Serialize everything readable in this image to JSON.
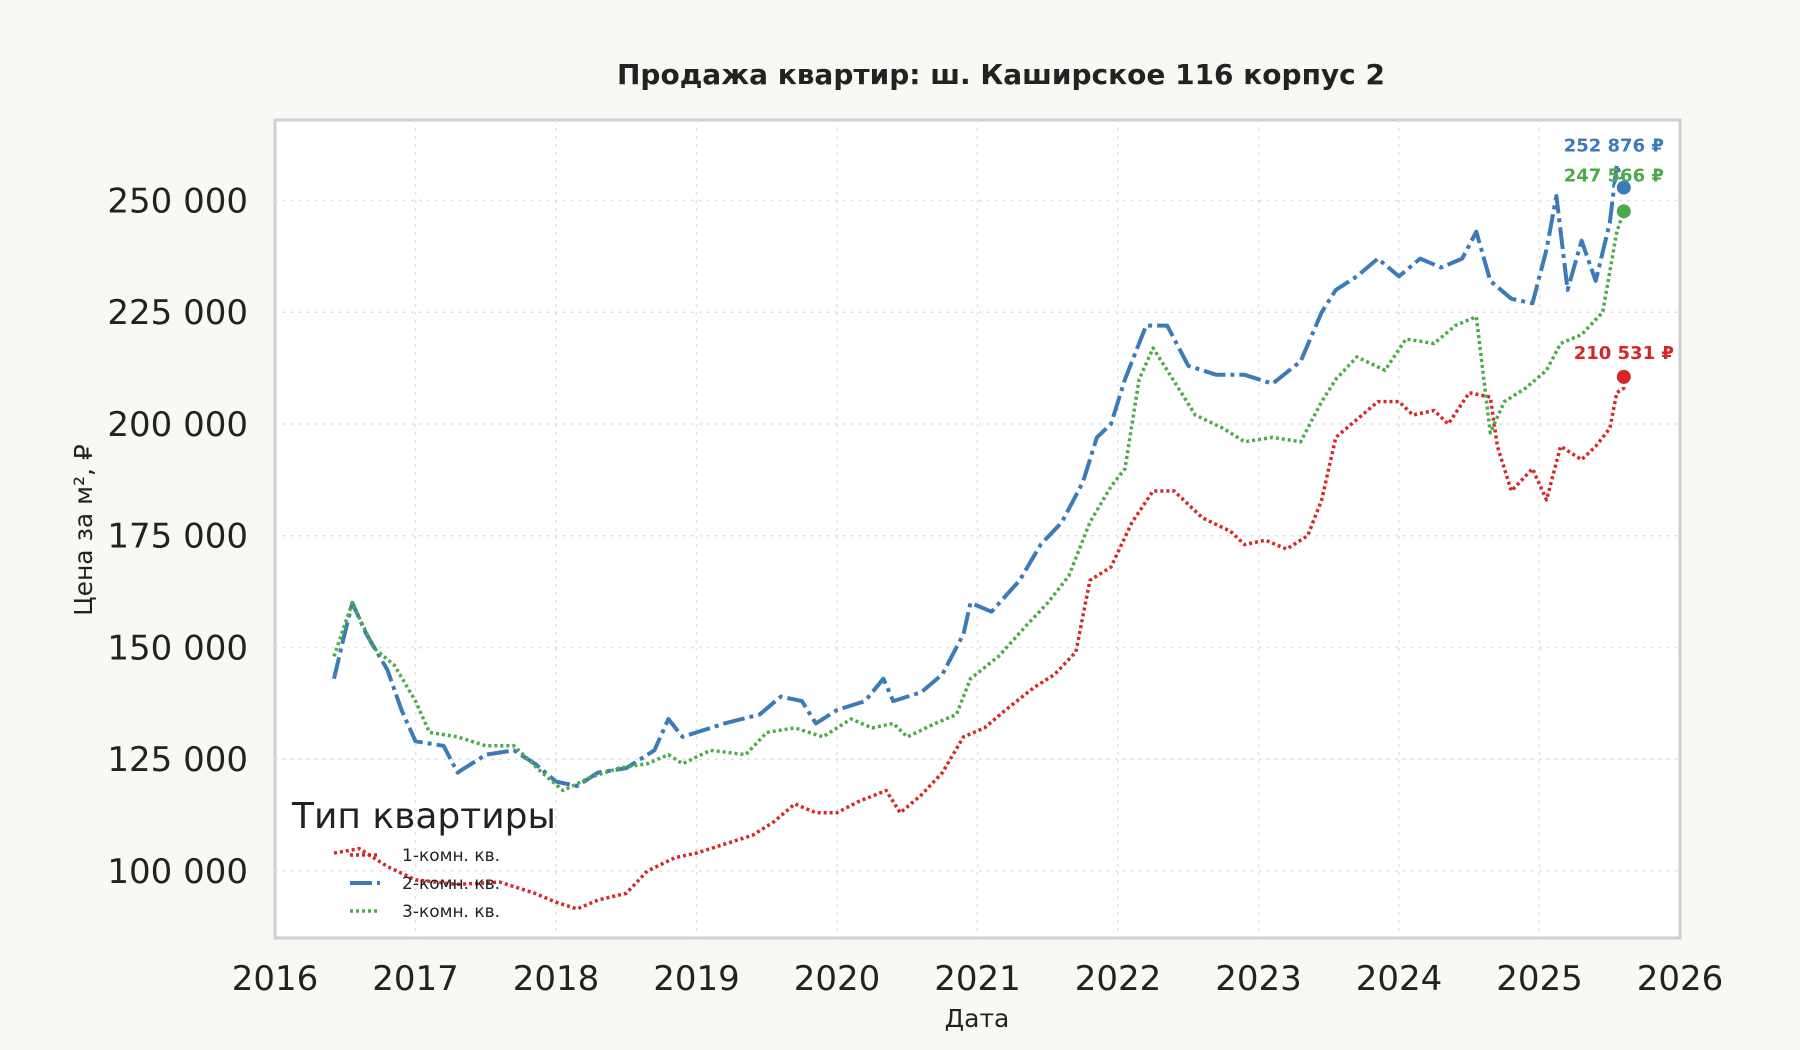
{
  "chart_data": {
    "type": "line",
    "title": "Продажа квартир: ш. Каширское 116 корпус 2",
    "xlabel": "Дата",
    "ylabel": "Цена за м², ₽",
    "xlim": [
      2016,
      2026
    ],
    "ylim": [
      85000,
      268000
    ],
    "x_ticks": [
      "2016",
      "2017",
      "2018",
      "2019",
      "2020",
      "2021",
      "2022",
      "2023",
      "2024",
      "2025",
      "2026"
    ],
    "y_ticks": [
      100000,
      125000,
      150000,
      175000,
      200000,
      225000,
      250000
    ],
    "y_tick_labels": [
      "100 000",
      "125 000",
      "150 000",
      "175 000",
      "200 000",
      "225 000",
      "250 000"
    ],
    "grid": true,
    "legend": {
      "title": "Тип квартиры",
      "placement": "lower-left"
    },
    "series": [
      {
        "name": "1-комн. кв.",
        "color": "#d62728",
        "style": "dotted",
        "points": [
          [
            2016.42,
            104000
          ],
          [
            2016.6,
            105000
          ],
          [
            2016.8,
            101000
          ],
          [
            2017.0,
            98000
          ],
          [
            2017.3,
            97000
          ],
          [
            2017.6,
            97500
          ],
          [
            2017.85,
            95000
          ],
          [
            2018.0,
            93000
          ],
          [
            2018.15,
            91500
          ],
          [
            2018.3,
            93500
          ],
          [
            2018.5,
            95000
          ],
          [
            2018.65,
            100000
          ],
          [
            2018.85,
            103000
          ],
          [
            2019.0,
            104000
          ],
          [
            2019.2,
            106000
          ],
          [
            2019.4,
            108000
          ],
          [
            2019.55,
            111000
          ],
          [
            2019.7,
            115000
          ],
          [
            2019.85,
            113000
          ],
          [
            2020.0,
            113000
          ],
          [
            2020.15,
            115500
          ],
          [
            2020.35,
            118000
          ],
          [
            2020.45,
            113000
          ],
          [
            2020.6,
            117000
          ],
          [
            2020.75,
            122000
          ],
          [
            2020.9,
            130000
          ],
          [
            2021.05,
            132000
          ],
          [
            2021.2,
            136000
          ],
          [
            2021.4,
            141000
          ],
          [
            2021.55,
            144000
          ],
          [
            2021.7,
            149000
          ],
          [
            2021.8,
            165000
          ],
          [
            2021.95,
            168000
          ],
          [
            2022.1,
            178000
          ],
          [
            2022.25,
            185000
          ],
          [
            2022.4,
            185000
          ],
          [
            2022.6,
            179000
          ],
          [
            2022.8,
            176000
          ],
          [
            2022.9,
            173000
          ],
          [
            2023.05,
            174000
          ],
          [
            2023.2,
            172000
          ],
          [
            2023.35,
            175000
          ],
          [
            2023.45,
            183000
          ],
          [
            2023.55,
            197000
          ],
          [
            2023.7,
            201000
          ],
          [
            2023.85,
            205000
          ],
          [
            2024.0,
            205000
          ],
          [
            2024.1,
            202000
          ],
          [
            2024.25,
            203000
          ],
          [
            2024.35,
            200000
          ],
          [
            2024.5,
            207000
          ],
          [
            2024.65,
            206000
          ],
          [
            2024.7,
            195000
          ],
          [
            2024.8,
            185000
          ],
          [
            2024.95,
            190000
          ],
          [
            2025.05,
            183000
          ],
          [
            2025.15,
            195000
          ],
          [
            2025.3,
            192000
          ],
          [
            2025.4,
            195000
          ],
          [
            2025.5,
            199000
          ],
          [
            2025.55,
            207000
          ],
          [
            2025.6,
            208000
          ],
          [
            2025.6,
            210531
          ]
        ],
        "end_label": "210 531 ₽"
      },
      {
        "name": "2-комн. кв.",
        "color": "#3d7ab8",
        "style": "dashdot",
        "points": [
          [
            2016.42,
            143000
          ],
          [
            2016.48,
            151000
          ],
          [
            2016.55,
            160000
          ],
          [
            2016.65,
            153000
          ],
          [
            2016.8,
            145000
          ],
          [
            2016.9,
            136000
          ],
          [
            2017.0,
            129000
          ],
          [
            2017.2,
            128000
          ],
          [
            2017.3,
            122000
          ],
          [
            2017.5,
            126000
          ],
          [
            2017.7,
            127000
          ],
          [
            2017.85,
            124000
          ],
          [
            2018.0,
            120000
          ],
          [
            2018.15,
            119000
          ],
          [
            2018.3,
            122000
          ],
          [
            2018.5,
            123000
          ],
          [
            2018.7,
            127000
          ],
          [
            2018.8,
            134000
          ],
          [
            2018.9,
            130000
          ],
          [
            2019.0,
            131000
          ],
          [
            2019.2,
            133000
          ],
          [
            2019.45,
            135000
          ],
          [
            2019.6,
            139000
          ],
          [
            2019.75,
            138000
          ],
          [
            2019.85,
            133000
          ],
          [
            2020.0,
            136000
          ],
          [
            2020.2,
            138000
          ],
          [
            2020.33,
            143000
          ],
          [
            2020.4,
            138000
          ],
          [
            2020.6,
            140000
          ],
          [
            2020.75,
            144000
          ],
          [
            2020.9,
            153000
          ],
          [
            2020.95,
            160000
          ],
          [
            2021.1,
            158000
          ],
          [
            2021.3,
            165000
          ],
          [
            2021.45,
            173000
          ],
          [
            2021.6,
            178000
          ],
          [
            2021.75,
            187000
          ],
          [
            2021.85,
            197000
          ],
          [
            2021.95,
            200000
          ],
          [
            2022.05,
            210000
          ],
          [
            2022.2,
            222000
          ],
          [
            2022.35,
            222000
          ],
          [
            2022.5,
            213000
          ],
          [
            2022.7,
            211000
          ],
          [
            2022.9,
            211000
          ],
          [
            2023.1,
            209000
          ],
          [
            2023.3,
            214000
          ],
          [
            2023.45,
            225000
          ],
          [
            2023.55,
            230000
          ],
          [
            2023.7,
            233000
          ],
          [
            2023.85,
            237000
          ],
          [
            2024.0,
            233000
          ],
          [
            2024.15,
            237000
          ],
          [
            2024.3,
            235000
          ],
          [
            2024.45,
            237000
          ],
          [
            2024.55,
            243000
          ],
          [
            2024.65,
            232000
          ],
          [
            2024.8,
            228000
          ],
          [
            2024.95,
            227000
          ],
          [
            2025.05,
            239000
          ],
          [
            2025.12,
            251000
          ],
          [
            2025.2,
            230000
          ],
          [
            2025.3,
            241000
          ],
          [
            2025.4,
            232000
          ],
          [
            2025.5,
            245000
          ],
          [
            2025.55,
            258000
          ],
          [
            2025.6,
            252876
          ]
        ],
        "end_label": "252 876 ₽"
      },
      {
        "name": "3-комн. кв.",
        "color": "#4daa4a",
        "style": "dotted",
        "points": [
          [
            2016.42,
            148000
          ],
          [
            2016.55,
            160000
          ],
          [
            2016.7,
            150000
          ],
          [
            2016.85,
            146000
          ],
          [
            2017.0,
            138000
          ],
          [
            2017.1,
            131000
          ],
          [
            2017.3,
            130000
          ],
          [
            2017.5,
            128000
          ],
          [
            2017.7,
            128000
          ],
          [
            2017.9,
            122000
          ],
          [
            2018.05,
            118000
          ],
          [
            2018.25,
            121000
          ],
          [
            2018.45,
            123000
          ],
          [
            2018.65,
            124000
          ],
          [
            2018.8,
            126000
          ],
          [
            2018.9,
            124000
          ],
          [
            2019.1,
            127000
          ],
          [
            2019.35,
            126000
          ],
          [
            2019.5,
            131000
          ],
          [
            2019.7,
            132000
          ],
          [
            2019.9,
            130000
          ],
          [
            2020.1,
            134000
          ],
          [
            2020.25,
            132000
          ],
          [
            2020.4,
            133000
          ],
          [
            2020.5,
            130000
          ],
          [
            2020.7,
            133000
          ],
          [
            2020.85,
            135000
          ],
          [
            2020.95,
            143000
          ],
          [
            2021.15,
            148000
          ],
          [
            2021.35,
            155000
          ],
          [
            2021.5,
            160000
          ],
          [
            2021.65,
            166000
          ],
          [
            2021.8,
            178000
          ],
          [
            2021.95,
            186000
          ],
          [
            2022.05,
            190000
          ],
          [
            2022.15,
            210000
          ],
          [
            2022.25,
            217000
          ],
          [
            2022.35,
            212000
          ],
          [
            2022.55,
            202000
          ],
          [
            2022.75,
            199000
          ],
          [
            2022.9,
            196000
          ],
          [
            2023.1,
            197000
          ],
          [
            2023.3,
            196000
          ],
          [
            2023.45,
            205000
          ],
          [
            2023.55,
            210000
          ],
          [
            2023.7,
            215000
          ],
          [
            2023.9,
            212000
          ],
          [
            2024.05,
            219000
          ],
          [
            2024.25,
            218000
          ],
          [
            2024.4,
            222000
          ],
          [
            2024.55,
            224000
          ],
          [
            2024.65,
            198000
          ],
          [
            2024.75,
            205000
          ],
          [
            2024.9,
            208000
          ],
          [
            2025.05,
            212000
          ],
          [
            2025.15,
            218000
          ],
          [
            2025.3,
            220000
          ],
          [
            2025.45,
            225000
          ],
          [
            2025.55,
            243000
          ],
          [
            2025.6,
            247566
          ]
        ],
        "end_label": "247 566 ₽"
      }
    ]
  }
}
